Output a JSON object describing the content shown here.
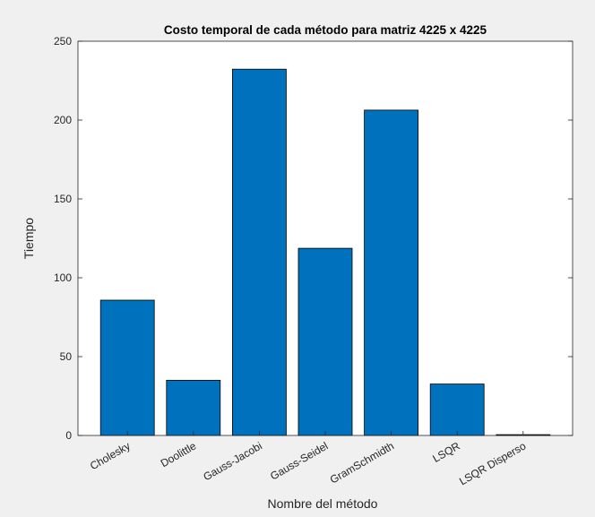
{
  "chart_data": {
    "type": "bar",
    "title": "Costo temporal de cada método para matriz 4225 x 4225",
    "xlabel": "Nombre del método",
    "ylabel": "Tiempo",
    "categories": [
      "Cholesky",
      "Doolittle",
      "Gauss-Jacobi",
      "Gauss-Seidel",
      "GramSchmidth",
      "LSQR",
      "LSQR Disperso"
    ],
    "values": [
      85.8,
      35.0,
      232.3,
      118.7,
      206.3,
      32.6,
      0.5
    ],
    "ylim": [
      0,
      250
    ],
    "yticks": [
      0,
      50,
      100,
      150,
      200,
      250
    ],
    "grid": false,
    "bar_color": "#0072BD",
    "edge_color": "#000000",
    "background_color": "#f0f0f0",
    "axes_color": "#ffffff"
  }
}
